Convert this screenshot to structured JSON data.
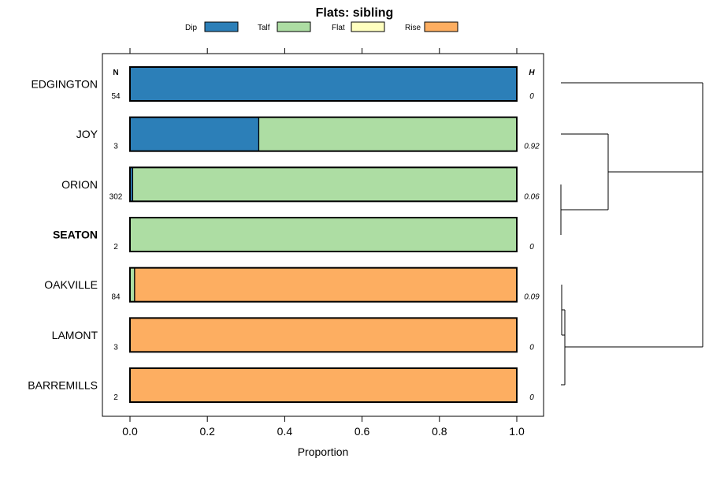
{
  "chart_data": {
    "type": "bar",
    "orientation": "horizontal",
    "stacked": true,
    "title": "Flats: sibling",
    "xlabel": "Proportion",
    "ylabel": "",
    "xlim": [
      0,
      1
    ],
    "xticks": [
      0.0,
      0.2,
      0.4,
      0.6,
      0.8,
      1.0
    ],
    "xtick_labels": [
      "0.0",
      "0.2",
      "0.4",
      "0.6",
      "0.8",
      "1.0"
    ],
    "legend": [
      {
        "name": "Dip",
        "color": "#2c7fb8"
      },
      {
        "name": "Talf",
        "color": "#addda3"
      },
      {
        "name": "Flat",
        "color": "#ffffbf"
      },
      {
        "name": "Rise",
        "color": "#fdae61"
      }
    ],
    "legend_position": "top",
    "n_header": "N",
    "h_header": "H",
    "categories": [
      "EDGINGTON",
      "JOY",
      "ORION",
      "SEATON",
      "OAKVILLE",
      "LAMONT",
      "BARREMILLS"
    ],
    "highlight": "SEATON",
    "n_values": [
      "54",
      "3",
      "302",
      "2",
      "84",
      "3",
      "2"
    ],
    "h_values": [
      "0",
      "0.92",
      "0.06",
      "0",
      "0.09",
      "0",
      "0"
    ],
    "series": [
      {
        "name": "Dip",
        "values": [
          1.0,
          0.333,
          0.007,
          0.0,
          0.0,
          0.0,
          0.0
        ]
      },
      {
        "name": "Talf",
        "values": [
          0.0,
          0.667,
          0.993,
          1.0,
          0.012,
          0.0,
          0.0
        ]
      },
      {
        "name": "Flat",
        "values": [
          0.0,
          0.0,
          0.0,
          0.0,
          0.0,
          0.0,
          0.0
        ]
      },
      {
        "name": "Rise",
        "values": [
          0.0,
          0.0,
          0.0,
          0.0,
          0.988,
          1.0,
          1.0
        ]
      }
    ],
    "dendrogram": {
      "merges": [
        {
          "a": "ORION",
          "b": "SEATON",
          "height": 0.0
        },
        {
          "a": "LAMONT",
          "b": "BARREMILLS",
          "height": 0.02
        },
        {
          "a": "OAKVILLE",
          "b": "LAMONT+BARREMILLS",
          "height": 0.01
        },
        {
          "a": "JOY",
          "b": "ORION+SEATON",
          "height": 0.3
        },
        {
          "a": "EDGINGTON",
          "b": "JOY+ORION+SEATON",
          "height": 1.0
        },
        {
          "a": "EDGINGTON+JOY+ORION+SEATON",
          "b": "OAKVILLE+LAMONT+BARREMILLS",
          "height": 1.0
        }
      ]
    }
  }
}
